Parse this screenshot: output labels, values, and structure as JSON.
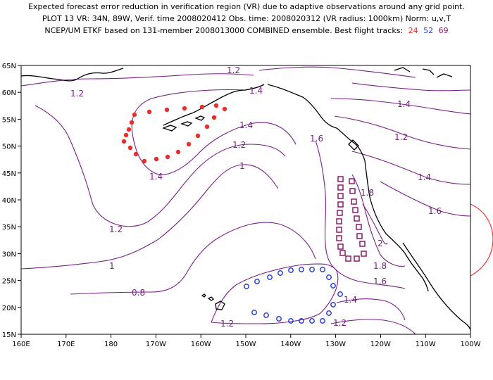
{
  "title": {
    "line1": "Expected forecast error reduction in verification region (VR) due to adaptive observations around any grid point.",
    "line2": "PLOT 13 VR: 34N, 89W, Verif. time 2008020412 Obs. time: 2008020312 (VR radius: 1000km) Norm: u,v,T",
    "line3": "NCEP/UM ETKF based on 131-member 2008013000 COMBINED ensemble.  Best flight tracks:",
    "tracks": [
      {
        "label": "24",
        "color": "#e8302a"
      },
      {
        "label": "52",
        "color": "#2a3fd8"
      },
      {
        "label": "69",
        "color": "#8a1a6e"
      }
    ]
  },
  "axes": {
    "x_ticks": [
      "160E",
      "170E",
      "180",
      "170W",
      "160W",
      "150W",
      "140W",
      "130W",
      "120W",
      "110W",
      "100W"
    ],
    "y_ticks": [
      "15N",
      "20N",
      "25N",
      "30N",
      "35N",
      "40N",
      "45N",
      "50N",
      "55N",
      "60N",
      "65N"
    ]
  },
  "contour_labels": [
    "1.2",
    "1.4",
    "1.2",
    "1.4",
    "1.6",
    "1.2",
    "1.4",
    "1",
    "1.2",
    "1.4",
    "1.6",
    "1.8",
    "1.2",
    "1",
    "0.8",
    "1.2",
    "1.4",
    "1.6",
    "2",
    "1.8",
    "1.4",
    "1.2"
  ],
  "colors": {
    "contour": "#7a1e8a",
    "track_24": "#e8302a",
    "track_52": "#2a3fd8",
    "track_69": "#8a1a6e",
    "verification_region": "#e8302a"
  },
  "map": {
    "lon_range": [
      160,
      260
    ],
    "lat_range": [
      15,
      65
    ]
  }
}
